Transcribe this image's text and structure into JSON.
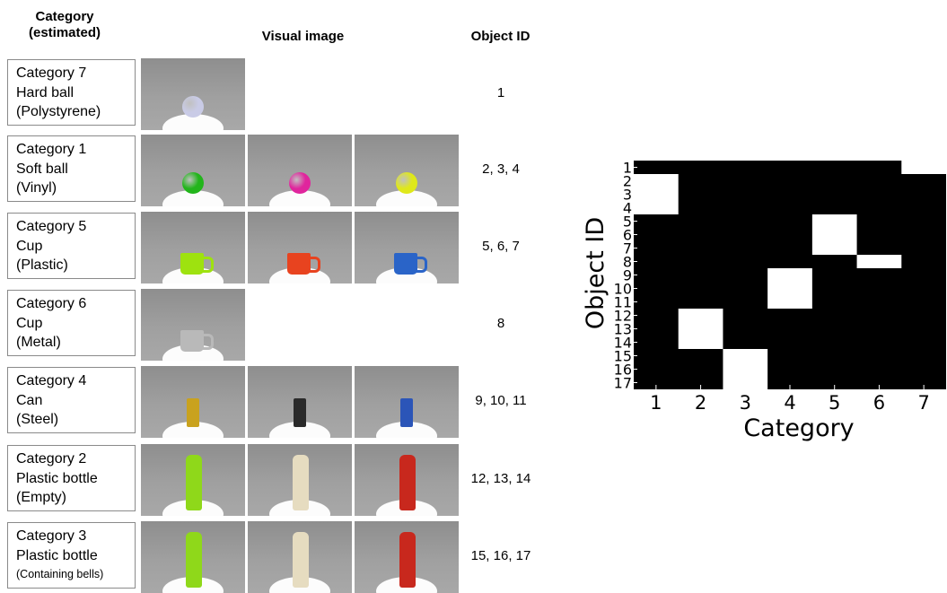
{
  "headers": {
    "category": "Category\n(estimated)",
    "category_line1": "Category",
    "category_line2": "(estimated)",
    "visual": "Visual image",
    "object_id": "Object ID"
  },
  "rows": [
    {
      "cat": "Category 7",
      "name": "Hard ball",
      "material": "(Polystyrene)",
      "ids": "1"
    },
    {
      "cat": "Category 1",
      "name": "Soft ball",
      "material": "(Vinyl)",
      "ids": "2, 3, 4"
    },
    {
      "cat": "Category 5",
      "name": "Cup",
      "material": "(Plastic)",
      "ids": "5, 6, 7"
    },
    {
      "cat": "Category 6",
      "name": "Cup",
      "material": "(Metal)",
      "ids": "8"
    },
    {
      "cat": "Category 4",
      "name": "Can",
      "material": "(Steel)",
      "ids": "9, 10, 11"
    },
    {
      "cat": "Category 2",
      "name": "Plastic bottle",
      "material": "(Empty)",
      "ids": "12, 13, 14"
    },
    {
      "cat": "Category 3",
      "name": "Plastic bottle",
      "material": "(Containing bells)",
      "ids": "15, 16, 17"
    }
  ],
  "photos": [
    [
      {
        "shape": "ball",
        "color": "#c9cbe6"
      }
    ],
    [
      {
        "shape": "ball",
        "color": "#22b51b"
      },
      {
        "shape": "ball",
        "color": "#e0259d"
      },
      {
        "shape": "ball",
        "color": "#dfe81a"
      }
    ],
    [
      {
        "shape": "cup",
        "color": "#9ee20f"
      },
      {
        "shape": "cup",
        "color": "#e8431f"
      },
      {
        "shape": "cup",
        "color": "#2a64c8"
      }
    ],
    [
      {
        "shape": "cup",
        "color": "#b9b9b9"
      }
    ],
    [
      {
        "shape": "can",
        "color": "#c9a21e"
      },
      {
        "shape": "can",
        "color": "#2a2a2a"
      },
      {
        "shape": "can",
        "color": "#2b55b8"
      }
    ],
    [
      {
        "shape": "bottle",
        "color": "#8fd81a"
      },
      {
        "shape": "bottle",
        "color": "#e6dcc0"
      },
      {
        "shape": "bottle",
        "color": "#c8281d"
      }
    ],
    [
      {
        "shape": "bottle",
        "color": "#8fd81a"
      },
      {
        "shape": "bottle",
        "color": "#e6dcc0"
      },
      {
        "shape": "bottle",
        "color": "#c8281d"
      }
    ]
  ],
  "chart_data": {
    "type": "heatmap",
    "title": "",
    "xlabel": "Category",
    "ylabel": "Object ID",
    "x": [
      1,
      2,
      3,
      4,
      5,
      6,
      7
    ],
    "y": [
      1,
      2,
      3,
      4,
      5,
      6,
      7,
      8,
      9,
      10,
      11,
      12,
      13,
      14,
      15,
      16,
      17
    ],
    "assignment": {
      "1": 7,
      "2": 1,
      "3": 1,
      "4": 1,
      "5": 5,
      "6": 5,
      "7": 5,
      "8": 6,
      "9": 4,
      "10": 4,
      "11": 4,
      "12": 2,
      "13": 2,
      "14": 2,
      "15": 3,
      "16": 3,
      "17": 3
    },
    "colors": {
      "assigned": "#ffffff",
      "other": "#000000"
    },
    "grid": false
  }
}
